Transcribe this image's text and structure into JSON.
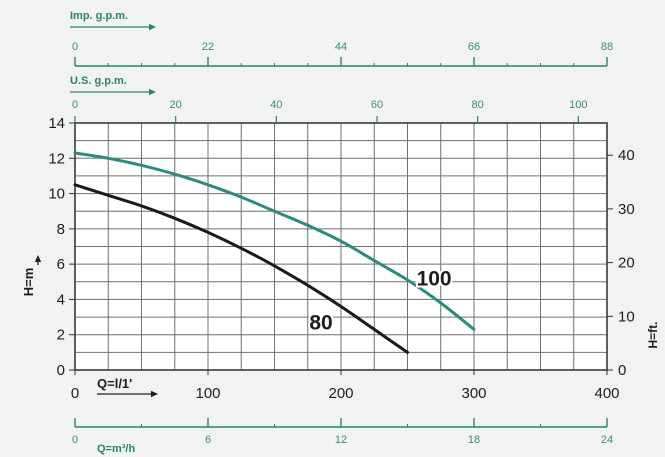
{
  "chart_data": {
    "type": "line",
    "primary_x": {
      "label": "Q=l/1'",
      "ticks": [
        "0",
        "100",
        "200",
        "300",
        "400"
      ],
      "range": [
        0,
        400
      ]
    },
    "left_y": {
      "label": "H=m",
      "ticks": [
        "0",
        "2",
        "4",
        "6",
        "8",
        "10",
        "12",
        "14"
      ],
      "range": [
        0,
        14
      ]
    },
    "right_y": {
      "label": "H=ft.",
      "ticks": [
        "0",
        "10",
        "20",
        "30",
        "40"
      ],
      "range": [
        0,
        46
      ]
    },
    "imp_gpm_axis": {
      "label": "Imp. g.p.m.",
      "ticks": [
        "0",
        "22",
        "44",
        "66",
        "88"
      ],
      "range": [
        0,
        88
      ]
    },
    "us_gpm_axis": {
      "label": "U.S. g.p.m.",
      "ticks": [
        "0",
        "20",
        "40",
        "60",
        "80",
        "100"
      ],
      "range": [
        0,
        105.7
      ]
    },
    "m3h_axis": {
      "label": "Q=m³/h",
      "ticks": [
        "0",
        "6",
        "12",
        "18",
        "24"
      ],
      "range": [
        0,
        24
      ]
    },
    "grid": true,
    "series": [
      {
        "name": "80",
        "color": "#1a1a1a",
        "x": [
          0,
          25,
          50,
          75,
          100,
          125,
          150,
          175,
          200,
          225,
          250
        ],
        "y": [
          10.5,
          9.9,
          9.3,
          8.6,
          7.8,
          6.9,
          5.9,
          4.8,
          3.6,
          2.3,
          1.0
        ]
      },
      {
        "name": "100",
        "color": "#2f8a7e",
        "x": [
          0,
          25,
          50,
          75,
          100,
          125,
          150,
          175,
          200,
          225,
          250,
          275,
          300
        ],
        "y": [
          12.3,
          12.0,
          11.6,
          11.1,
          10.5,
          9.8,
          9.0,
          8.2,
          7.3,
          6.2,
          5.1,
          3.8,
          2.3
        ]
      }
    ]
  }
}
